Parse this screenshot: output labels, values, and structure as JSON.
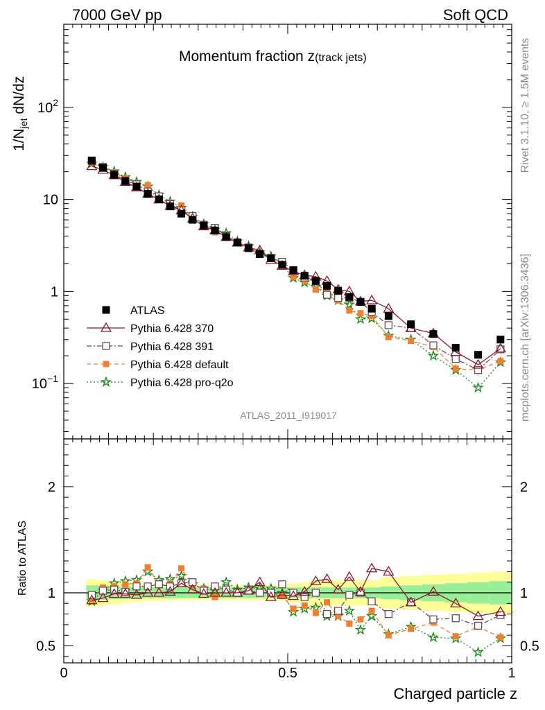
{
  "header": {
    "left": "7000 GeV pp",
    "right": "Soft QCD"
  },
  "side_labels": {
    "rivet": "Rivet 3.1.10, ≥ 1.5M events",
    "mcplots": "mcplots.cern.ch [arXiv:1306.3436]"
  },
  "analysis_id": "ATLAS_2011_I919017",
  "chart_data": [
    {
      "type": "scatter",
      "title_main": "Momentum fraction z",
      "title_sub": "(track jets)",
      "ylabel": "1/N",
      "ylabel_sub": "jet",
      "ylabel_tail": " dN/dz",
      "yscale": "log",
      "ylim": [
        0.025,
        800
      ],
      "xlim": [
        0,
        1
      ],
      "y_ticks": [
        {
          "value": 0.1,
          "label": "10",
          "sup": "−1"
        },
        {
          "value": 1,
          "label": "1",
          "sup": ""
        },
        {
          "value": 10,
          "label": "10",
          "sup": ""
        },
        {
          "value": 100,
          "label": "10",
          "sup": "2"
        }
      ],
      "legend_placement": "bottom-left",
      "x": [
        0.0625,
        0.0875,
        0.1125,
        0.1375,
        0.1625,
        0.1875,
        0.2125,
        0.2375,
        0.2625,
        0.2875,
        0.3125,
        0.3375,
        0.3625,
        0.3875,
        0.4125,
        0.4375,
        0.4625,
        0.4875,
        0.5125,
        0.5375,
        0.5625,
        0.5875,
        0.6125,
        0.6375,
        0.6625,
        0.6875,
        0.725,
        0.775,
        0.825,
        0.875,
        0.925,
        0.975
      ],
      "series": [
        {
          "name": "ATLAS",
          "values": [
            26.5,
            22.0,
            18.5,
            15.8,
            13.8,
            11.5,
            10.0,
            8.4,
            7.0,
            6.0,
            5.2,
            4.6,
            3.9,
            3.4,
            2.95,
            2.55,
            2.3,
            1.95,
            1.7,
            1.48,
            1.3,
            1.15,
            1.02,
            0.87,
            0.77,
            0.65,
            0.54,
            0.44,
            0.345,
            0.245,
            0.205,
            0.3
          ]
        },
        {
          "name": "Pythia 6.428 370",
          "values": [
            23.0,
            21.0,
            18.3,
            15.5,
            13.5,
            11.5,
            10.0,
            8.5,
            7.6,
            6.2,
            5.1,
            4.6,
            3.9,
            3.4,
            3.0,
            2.8,
            2.2,
            1.9,
            1.65,
            1.5,
            1.45,
            1.3,
            1.05,
            1.0,
            0.78,
            0.8,
            0.65,
            0.4,
            0.35,
            0.22,
            0.16,
            0.24
          ]
        },
        {
          "name": "Pythia 6.428 391",
          "values": [
            26.0,
            22.5,
            19.0,
            16.0,
            14.6,
            12.2,
            10.8,
            8.9,
            7.6,
            6.6,
            5.3,
            4.9,
            4.0,
            3.4,
            3.0,
            2.55,
            2.3,
            2.1,
            1.7,
            1.42,
            1.3,
            0.92,
            0.85,
            0.85,
            0.77,
            0.6,
            0.43,
            0.4,
            0.26,
            0.185,
            0.14,
            0.235
          ]
        },
        {
          "name": "Pythia 6.428 default",
          "values": [
            25.0,
            23.0,
            19.7,
            17.0,
            15.0,
            14.3,
            10.8,
            9.1,
            8.6,
            6.4,
            5.4,
            4.4,
            4.0,
            3.4,
            3.0,
            2.55,
            2.3,
            1.9,
            1.45,
            1.3,
            1.05,
            1.05,
            0.8,
            0.62,
            0.58,
            0.54,
            0.32,
            0.29,
            0.25,
            0.145,
            0.14,
            0.175
          ]
        },
        {
          "name": "Pythia 6.428 pro-q2o",
          "values": [
            24.5,
            22.5,
            20.2,
            17.5,
            15.5,
            13.8,
            11.2,
            9.5,
            8.1,
            6.5,
            5.4,
            4.7,
            4.3,
            3.5,
            3.1,
            2.65,
            2.4,
            1.95,
            1.4,
            1.25,
            1.12,
            0.9,
            0.8,
            0.72,
            0.5,
            0.51,
            0.33,
            0.3,
            0.2,
            0.14,
            0.09,
            0.17
          ]
        }
      ]
    },
    {
      "type": "scatter",
      "ylabel": "Ratio to ATLAS",
      "ylim": [
        0.34,
        2.45
      ],
      "xlim": [
        0,
        1
      ],
      "xlabel": "Charged particle z",
      "x_ticks": [
        {
          "value": 0,
          "label": "0"
        },
        {
          "value": 0.5,
          "label": "0.5"
        },
        {
          "value": 1,
          "label": "1"
        }
      ],
      "y_ticks": [
        {
          "value": 0.5,
          "label": "0.5"
        },
        {
          "value": 1,
          "label": "1"
        },
        {
          "value": 2,
          "label": "2"
        }
      ],
      "reference_line": 1,
      "band_inner": [
        0.07,
        0.07,
        0.06,
        0.06,
        0.05,
        0.05,
        0.05,
        0.05,
        0.05,
        0.05,
        0.05,
        0.05,
        0.05,
        0.05,
        0.05,
        0.05,
        0.05,
        0.05,
        0.05,
        0.05,
        0.05,
        0.05,
        0.05,
        0.05,
        0.05,
        0.05,
        0.06,
        0.07,
        0.08,
        0.09,
        0.1,
        0.11
      ],
      "band_outer": [
        0.13,
        0.12,
        0.11,
        0.1,
        0.09,
        0.08,
        0.08,
        0.07,
        0.07,
        0.07,
        0.07,
        0.07,
        0.07,
        0.07,
        0.07,
        0.07,
        0.07,
        0.07,
        0.09,
        0.1,
        0.12,
        0.12,
        0.12,
        0.12,
        0.12,
        0.12,
        0.15,
        0.16,
        0.17,
        0.18,
        0.19,
        0.2
      ],
      "series": [
        {
          "name": "Pythia 6.428 370",
          "values": [
            0.93,
            0.95,
            0.99,
            0.99,
            0.98,
            1.0,
            1.0,
            1.01,
            1.09,
            1.03,
            0.99,
            1.0,
            1.0,
            1.0,
            1.02,
            1.1,
            0.96,
            0.98,
            0.97,
            1.01,
            1.11,
            1.13,
            1.03,
            1.15,
            1.01,
            1.23,
            1.2,
            0.91,
            1.01,
            0.9,
            0.78,
            0.82
          ]
        },
        {
          "name": "Pythia 6.428 391",
          "values": [
            0.98,
            1.02,
            1.03,
            1.01,
            1.06,
            1.06,
            1.08,
            1.06,
            1.09,
            1.1,
            1.02,
            1.06,
            1.03,
            1.0,
            1.02,
            1.0,
            1.0,
            1.08,
            1.0,
            0.96,
            1.0,
            0.8,
            0.83,
            0.98,
            1.0,
            0.92,
            0.8,
            0.91,
            0.75,
            0.76,
            0.69,
            0.79
          ]
        },
        {
          "name": "Pythia 6.428 default",
          "values": [
            0.94,
            1.05,
            1.06,
            1.08,
            1.09,
            1.24,
            1.08,
            1.08,
            1.23,
            1.07,
            1.04,
            0.96,
            1.03,
            1.0,
            1.02,
            1.0,
            1.0,
            0.97,
            0.85,
            0.88,
            0.81,
            0.91,
            0.78,
            0.71,
            0.75,
            0.83,
            0.6,
            0.66,
            0.72,
            0.59,
            0.68,
            0.58
          ]
        },
        {
          "name": "Pythia 6.428 pro-q2o",
          "values": [
            0.92,
            1.02,
            1.09,
            1.11,
            1.12,
            1.2,
            1.12,
            1.13,
            1.16,
            1.08,
            1.04,
            1.02,
            1.1,
            1.03,
            1.05,
            1.04,
            1.04,
            1.0,
            0.82,
            0.85,
            0.86,
            0.78,
            0.78,
            0.83,
            0.65,
            0.78,
            0.61,
            0.68,
            0.58,
            0.57,
            0.44,
            0.57
          ]
        }
      ]
    }
  ]
}
